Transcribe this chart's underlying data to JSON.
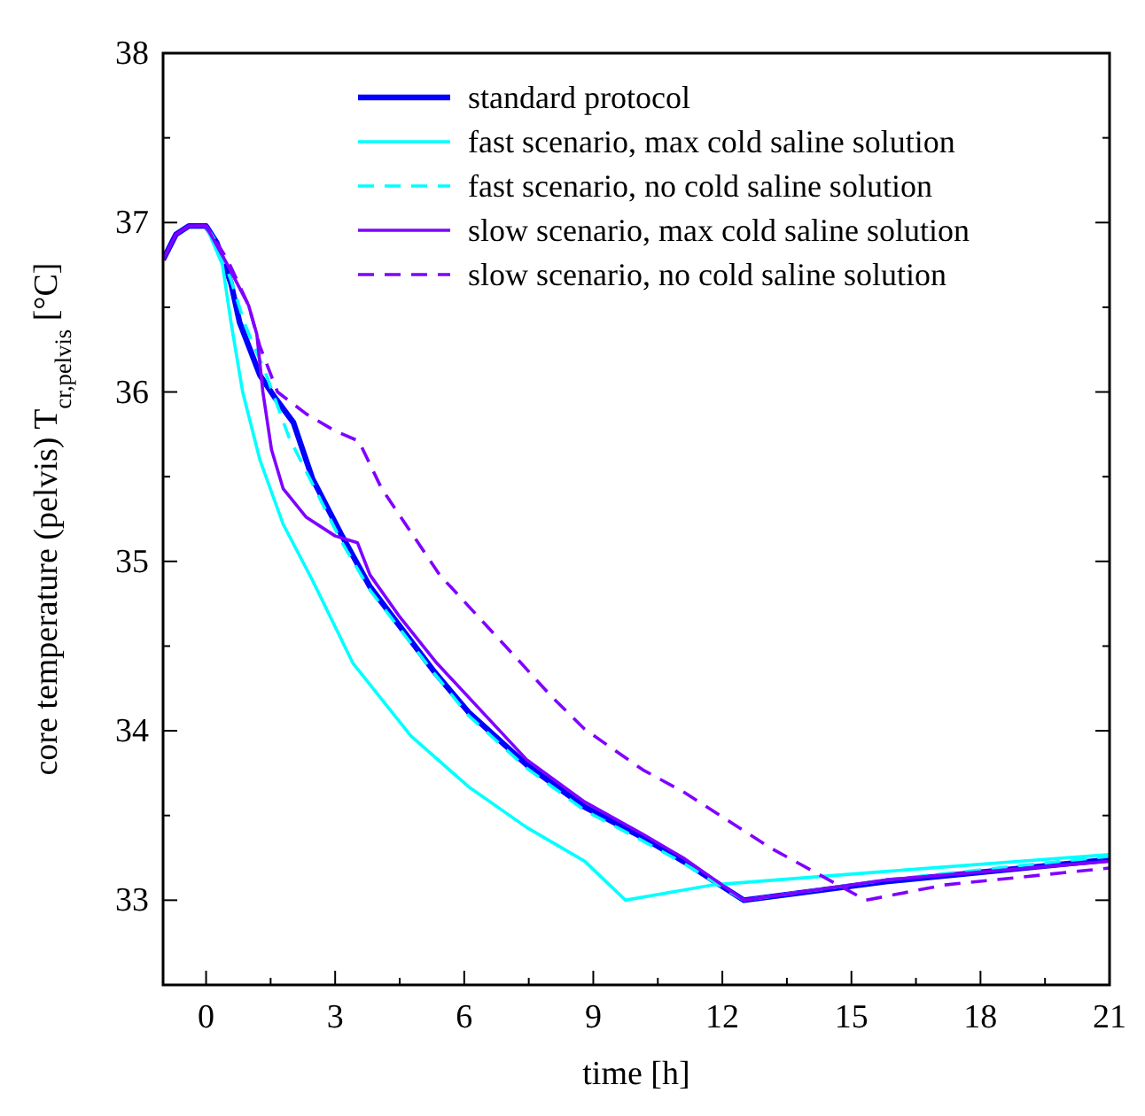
{
  "chart_data": {
    "type": "line",
    "xlabel": "time [h]",
    "ylabel": "core temperature (pelvis) T$_{cr,pelvis}$ [°C]",
    "xlim": [
      -1,
      21
    ],
    "ylim": [
      32.5,
      38
    ],
    "xticks": [
      0,
      {
        "value": 1.5,
        "label": null
      },
      3,
      {
        "value": 4.5,
        "label": null
      },
      6,
      {
        "value": 7.5,
        "label": null
      },
      9,
      {
        "value": 10.5,
        "label": null
      },
      12,
      {
        "value": 13.5,
        "label": null
      },
      15,
      {
        "value": 16.5,
        "label": null
      },
      18,
      {
        "value": 19.5,
        "label": null
      },
      21
    ],
    "yticks": [
      33,
      {
        "value": 33.5,
        "label": null
      },
      34,
      {
        "value": 34.5,
        "label": null
      },
      35,
      {
        "value": 35.5,
        "label": null
      },
      36,
      {
        "value": 36.5,
        "label": null
      },
      37,
      {
        "value": 37.5,
        "label": null
      },
      38
    ],
    "grid": false,
    "legend": "top right",
    "series": [
      {
        "name": "standard protocol",
        "color": "#0000ff",
        "line_style": "solid",
        "x": [
          -1,
          -0.7,
          -0.4,
          0,
          0.25,
          0.58,
          0.78,
          1.25,
          1.59,
          2.03,
          2.47,
          3.14,
          3.81,
          5.3,
          6.1,
          7.45,
          8.8,
          10.15,
          11.09,
          12.5,
          15.8,
          21
        ],
        "values": [
          36.78,
          36.93,
          36.98,
          36.98,
          36.88,
          36.64,
          36.41,
          36.1,
          35.97,
          35.82,
          35.49,
          35.16,
          34.85,
          34.35,
          34.11,
          33.8,
          33.55,
          33.37,
          33.23,
          33.0,
          33.11,
          33.24
        ]
      },
      {
        "name": "fast scenario, max cold saline solution",
        "color": "#00ffff",
        "line_style": "solid",
        "x": [
          0,
          0.38,
          0.58,
          0.85,
          1.25,
          1.79,
          2.47,
          3.41,
          4.76,
          6.1,
          7.45,
          8.8,
          9.75,
          11.76,
          15.8,
          21
        ],
        "values": [
          36.98,
          36.75,
          36.41,
          36.0,
          35.6,
          35.22,
          34.89,
          34.4,
          33.97,
          33.67,
          33.43,
          33.23,
          33.0,
          33.09,
          33.17,
          33.27
        ]
      },
      {
        "name": "fast scenario, no cold saline solution",
        "color": "#00ffff",
        "line_style": "dashed",
        "x": [
          0,
          0.25,
          0.58,
          0.9,
          1.4,
          1.93,
          2.33,
          3.14,
          3.81,
          5.3,
          6.1,
          7.45,
          8.8,
          10.15,
          11.09,
          12.5,
          15.8,
          21
        ],
        "values": [
          36.98,
          36.88,
          36.66,
          36.4,
          36.1,
          35.73,
          35.53,
          35.12,
          34.83,
          34.34,
          34.09,
          33.78,
          33.53,
          33.35,
          33.22,
          33.0,
          33.12,
          33.26
        ]
      },
      {
        "name": "slow scenario, max cold saline solution",
        "color": "#8000ff",
        "line_style": "solid",
        "x": [
          -1,
          -0.7,
          -0.4,
          0,
          0.5,
          0.99,
          1.18,
          1.32,
          1.52,
          1.79,
          2.33,
          3.0,
          3.52,
          3.81,
          4.48,
          5.36,
          7.45,
          8.8,
          10.15,
          11.09,
          12.5,
          15.8,
          21
        ],
        "values": [
          36.78,
          36.93,
          36.98,
          36.98,
          36.75,
          36.51,
          36.34,
          36.0,
          35.66,
          35.43,
          35.26,
          35.15,
          35.11,
          34.92,
          34.68,
          34.4,
          33.83,
          33.58,
          33.39,
          33.25,
          33.0,
          33.12,
          33.23
        ]
      },
      {
        "name": "slow scenario, no cold saline solution",
        "color": "#8000ff",
        "line_style": "dashed",
        "x": [
          -1,
          -0.7,
          -0.4,
          0,
          0.5,
          0.99,
          1.25,
          1.66,
          2.33,
          3.0,
          3.55,
          4.08,
          5.43,
          7.32,
          8.0,
          8.8,
          9.47,
          10.15,
          11.09,
          13.11,
          15.34,
          17.16,
          21
        ],
        "values": [
          36.78,
          36.93,
          36.98,
          36.98,
          36.78,
          36.51,
          36.27,
          36.0,
          35.87,
          35.77,
          35.71,
          35.43,
          34.92,
          34.4,
          34.21,
          34.01,
          33.89,
          33.77,
          33.64,
          33.31,
          33.0,
          33.09,
          33.19
        ]
      }
    ]
  }
}
